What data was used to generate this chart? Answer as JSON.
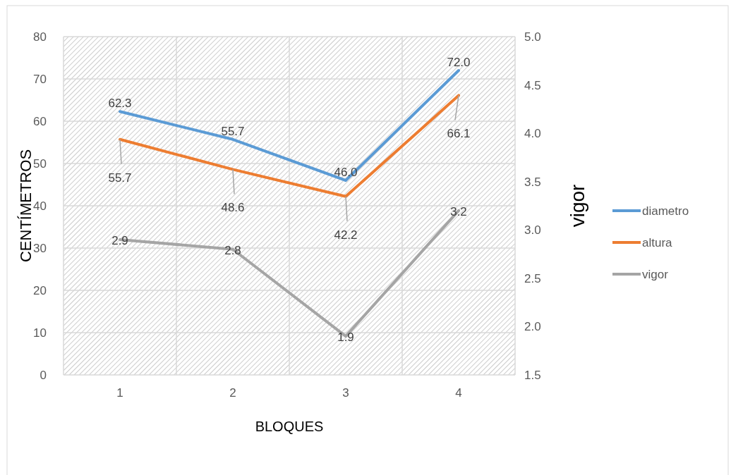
{
  "chart_data": {
    "type": "line",
    "xlabel": "BLOQUES",
    "ylabel": "CENTÍMETROS",
    "y2label": "vigor",
    "categories": [
      "1",
      "2",
      "3",
      "4"
    ],
    "series": [
      {
        "name": "diametro",
        "color": "#5b9bd5",
        "values": [
          62.3,
          55.7,
          46.0,
          72.0
        ],
        "value_labels": [
          "62.3",
          "55.7",
          "46.0",
          "72.0"
        ]
      },
      {
        "name": "altura",
        "color": "#ed7d31",
        "values": [
          55.7,
          48.6,
          42.2,
          66.1
        ],
        "value_labels": [
          "55.7",
          "48.6",
          "42.2",
          "66.1"
        ]
      },
      {
        "name": "vigor",
        "color": "#a5a5a5",
        "values": [
          2.9,
          2.8,
          1.9,
          3.2
        ],
        "value_labels": [
          "2.9",
          "2.8",
          "1.9",
          "3.2"
        ],
        "axis": "y2"
      }
    ],
    "ylim": [
      0,
      80
    ],
    "yticks": [
      0,
      10,
      20,
      30,
      40,
      50,
      60,
      70,
      80
    ],
    "y2lim": [
      1.5,
      5.0
    ],
    "y2ticks": [
      {
        "value": 1.5,
        "label": "1.5"
      },
      {
        "value": 2.0,
        "label": "2.0"
      },
      {
        "value": 2.5,
        "label": "2.5"
      },
      {
        "value": 3.0,
        "label": "3.0"
      },
      {
        "value": 3.5,
        "label": "3.5"
      },
      {
        "value": 4.0,
        "label": "4.0"
      },
      {
        "value": 4.5,
        "label": "4.5"
      },
      {
        "value": 5.0,
        "label": "5.0"
      }
    ],
    "grid": true,
    "legend": "right",
    "marker": "none",
    "line_style": "solid"
  }
}
